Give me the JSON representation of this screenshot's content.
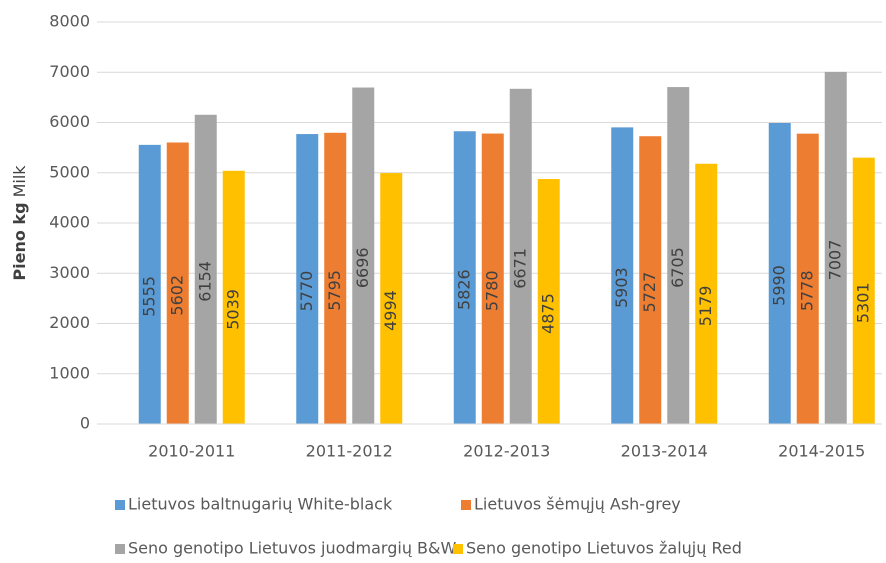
{
  "chart_data": {
    "type": "bar",
    "ylabel_parts": [
      "Pieno kg",
      "Milk"
    ],
    "categories": [
      "2010-2011",
      "2011-2012",
      "2012-2013",
      "2013-2014",
      "2014-2015"
    ],
    "series": [
      {
        "name": "Lietuvos baltnugarių White-black",
        "color": "#5b9bd5",
        "values": [
          5555,
          5770,
          5826,
          5903,
          5990
        ]
      },
      {
        "name": "Lietuvos šėmųjų Ash-grey",
        "color": "#ed7d31",
        "values": [
          5602,
          5795,
          5780,
          5727,
          5778
        ]
      },
      {
        "name": "Seno genotipo Lietuvos juodmargių B&W",
        "color": "#a5a5a5",
        "values": [
          6154,
          6696,
          6671,
          6705,
          7007
        ]
      },
      {
        "name": "Seno genotipo Lietuvos žalųjų Red",
        "color": "#ffc000",
        "values": [
          5039,
          4994,
          4875,
          5179,
          5301
        ]
      }
    ],
    "ylim": [
      0,
      8000
    ],
    "yticks": [
      0,
      1000,
      2000,
      3000,
      4000,
      5000,
      6000,
      7000,
      8000
    ],
    "grid": true
  }
}
